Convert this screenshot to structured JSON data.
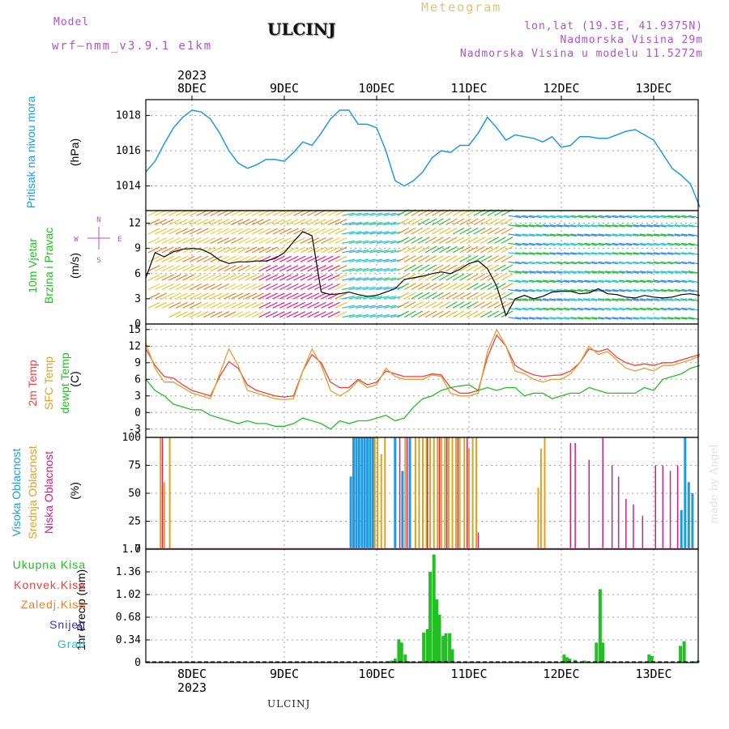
{
  "header": {
    "model_label": "Model",
    "model_name": "wrf—nmm_v3.9.1 e1km",
    "station": "ULCINJ",
    "meteogram": "Meteogram",
    "lonlat": "lon,lat (19.3E, 41.9375N)",
    "altitude": "Nadmorska Visina 29m",
    "model_altitude": "Nadmorska Visina u modelu 11.5272m",
    "footer_station": "ULCINJ",
    "watermark": "made by Angel"
  },
  "colors": {
    "pressure": "#1e9be0",
    "temp2m": "#f04040",
    "sfc": "#dfa030",
    "dewpt": "#22c022",
    "high_cloud": "#1e9be0",
    "mid_cloud": "#e0a020",
    "low_cloud": "#d02080",
    "precip": "#22c022",
    "header_purple": "#b050d0",
    "header_orange": "#e8c070"
  },
  "axis": {
    "top_year": "2023",
    "bottom_year": "2023",
    "days": [
      "8DEC",
      "9DEC",
      "10DEC",
      "11DEC",
      "12DEC",
      "13DEC"
    ]
  },
  "chart_data": [
    {
      "id": "pressure",
      "type": "line",
      "ylabel_main": "Pritisak na nivou mora",
      "ylabel_unit": "(hPa)",
      "yticks": [
        1014,
        1016,
        1018
      ],
      "ylim": [
        1012.6,
        1018.9
      ],
      "x_days": [
        -0.5,
        -0.4,
        -0.3,
        -0.2,
        -0.1,
        0.0,
        0.1,
        0.2,
        0.3,
        0.4,
        0.5,
        0.6,
        0.7,
        0.8,
        0.9,
        1.0,
        1.1,
        1.2,
        1.3,
        1.4,
        1.5,
        1.6,
        1.7,
        1.8,
        1.9,
        2.0,
        2.1,
        2.2,
        2.3,
        2.4,
        2.5,
        2.6,
        2.7,
        2.8,
        2.9,
        3.0,
        3.1,
        3.2,
        3.3,
        3.4,
        3.5,
        3.6,
        3.7,
        3.8,
        3.9,
        4.0,
        4.1,
        4.2,
        4.3,
        4.4,
        4.5,
        4.6,
        4.7,
        4.8,
        4.9,
        5.0,
        5.1,
        5.2,
        5.3,
        5.4,
        5.5
      ],
      "series": [
        {
          "values": [
            1014.8,
            1015.4,
            1016.4,
            1017.3,
            1017.9,
            1018.3,
            1018.2,
            1017.8,
            1017.0,
            1016.0,
            1015.3,
            1015.0,
            1015.2,
            1015.5,
            1015.5,
            1015.4,
            1015.9,
            1016.5,
            1016.3,
            1017.0,
            1017.8,
            1018.3,
            1018.3,
            1017.5,
            1017.5,
            1017.3,
            1016.0,
            1014.3,
            1014.0,
            1014.3,
            1014.8,
            1015.6,
            1016.0,
            1015.9,
            1016.3,
            1016.3,
            1017.0,
            1017.9,
            1017.3,
            1016.6,
            1016.9,
            1016.8,
            1016.7,
            1016.5,
            1016.8,
            1016.2,
            1016.3,
            1016.8,
            1016.8,
            1016.7,
            1016.7,
            1016.9,
            1017.1,
            1017.2,
            1016.9,
            1016.6,
            1015.8,
            1015.0,
            1014.6,
            1014.1,
            1012.8
          ]
        }
      ]
    },
    {
      "id": "wind",
      "type": "line",
      "ylabel_main": "10m Vjetar",
      "ylabel_sub": "Brzina i Pravac",
      "ylabel_unit": "(m/s)",
      "compass": [
        "N",
        "E",
        "S",
        "W"
      ],
      "yticks": [
        0,
        3,
        6,
        9,
        12
      ],
      "ylim": [
        0,
        13.5
      ],
      "x_days": [
        -0.5,
        -0.4,
        -0.3,
        -0.2,
        -0.1,
        0.0,
        0.1,
        0.2,
        0.3,
        0.4,
        0.5,
        0.6,
        0.7,
        0.8,
        0.9,
        1.0,
        1.1,
        1.2,
        1.3,
        1.4,
        1.5,
        1.6,
        1.7,
        1.8,
        1.9,
        2.0,
        2.1,
        2.2,
        2.3,
        2.4,
        2.5,
        2.6,
        2.7,
        2.8,
        2.9,
        3.0,
        3.1,
        3.2,
        3.3,
        3.4,
        3.5,
        3.6,
        3.7,
        3.8,
        3.9,
        4.0,
        4.1,
        4.2,
        4.3,
        4.4,
        4.5,
        4.6,
        4.7,
        4.8,
        4.9,
        5.0,
        5.1,
        5.2,
        5.3,
        5.4,
        5.5
      ],
      "series": [
        {
          "values": [
            5.5,
            8.5,
            8.0,
            8.6,
            8.9,
            9.0,
            8.9,
            8.4,
            7.6,
            7.2,
            7.4,
            7.4,
            7.5,
            7.5,
            7.8,
            8.5,
            9.8,
            11.0,
            10.5,
            3.8,
            3.5,
            3.6,
            3.8,
            3.5,
            3.3,
            3.4,
            3.8,
            4.2,
            5.3,
            5.5,
            5.7,
            6.0,
            6.2,
            6.0,
            6.5,
            7.2,
            7.5,
            6.6,
            4.5,
            1.0,
            3.0,
            3.4,
            3.0,
            3.3,
            3.8,
            3.9,
            3.9,
            3.6,
            3.7,
            4.2,
            3.6,
            3.5,
            3.2,
            3.1,
            3.4,
            3.2,
            3.1,
            3.2,
            3.5,
            3.6,
            3.4
          ]
        }
      ]
    },
    {
      "id": "temperature",
      "type": "line",
      "ylabel_main": "2m Temp",
      "ylabel_sub": "SFC Temp",
      "ylabel_sub2": "dewpt Temp",
      "ylabel_unit": "(C)",
      "yticks": [
        -3,
        0,
        3,
        6,
        9,
        12,
        15
      ],
      "ylim": [
        -4.5,
        16
      ],
      "x_days": [
        -0.5,
        -0.4,
        -0.3,
        -0.2,
        -0.1,
        0.0,
        0.1,
        0.2,
        0.3,
        0.4,
        0.5,
        0.6,
        0.7,
        0.8,
        0.9,
        1.0,
        1.1,
        1.2,
        1.3,
        1.4,
        1.5,
        1.6,
        1.7,
        1.8,
        1.9,
        2.0,
        2.1,
        2.2,
        2.3,
        2.4,
        2.5,
        2.6,
        2.7,
        2.8,
        2.9,
        3.0,
        3.1,
        3.2,
        3.3,
        3.4,
        3.5,
        3.6,
        3.7,
        3.8,
        3.9,
        4.0,
        4.1,
        4.2,
        4.3,
        4.4,
        4.5,
        4.6,
        4.7,
        4.8,
        4.9,
        5.0,
        5.1,
        5.2,
        5.3,
        5.4,
        5.5
      ],
      "series": [
        {
          "name": "2m Temp",
          "values": [
            11.5,
            8.5,
            6.5,
            6.2,
            5.0,
            4.0,
            3.5,
            3.0,
            6.5,
            9.2,
            8.0,
            5.0,
            4.0,
            3.5,
            3.0,
            2.8,
            3.0,
            7.5,
            10.5,
            9.0,
            5.5,
            4.5,
            4.5,
            6.0,
            5.0,
            5.5,
            7.5,
            7.0,
            6.5,
            6.5,
            6.5,
            7.0,
            6.8,
            4.5,
            3.5,
            3.5,
            4.0,
            10.0,
            14.0,
            12.0,
            8.5,
            7.5,
            6.8,
            6.5,
            6.7,
            6.8,
            7.5,
            9.0,
            11.5,
            11.0,
            11.5,
            10.0,
            9.0,
            8.5,
            8.8,
            8.5,
            9.0,
            9.0,
            9.5,
            10.0,
            10.5
          ]
        },
        {
          "name": "SFC Temp",
          "values": [
            12.5,
            8.0,
            5.5,
            5.5,
            4.5,
            3.5,
            3.0,
            2.5,
            7.0,
            11.5,
            8.5,
            4.0,
            3.5,
            3.0,
            2.5,
            2.3,
            2.5,
            7.5,
            11.5,
            8.5,
            4.0,
            3.0,
            4.0,
            5.8,
            4.5,
            5.0,
            8.0,
            6.5,
            6.0,
            6.0,
            6.0,
            6.8,
            6.5,
            3.5,
            3.0,
            3.0,
            3.5,
            11.0,
            15.0,
            12.0,
            7.5,
            7.0,
            6.0,
            5.5,
            6.0,
            6.0,
            7.0,
            9.0,
            12.0,
            10.5,
            11.0,
            9.5,
            8.0,
            7.5,
            8.0,
            7.5,
            8.5,
            8.5,
            9.0,
            9.5,
            10.2
          ]
        },
        {
          "name": "dewpt Temp",
          "values": [
            6.0,
            4.0,
            3.0,
            1.5,
            1.0,
            0.5,
            0.5,
            -0.5,
            -1.0,
            -1.5,
            -2.0,
            -1.5,
            -2.0,
            -2.0,
            -2.5,
            -2.5,
            -2.0,
            -1.0,
            -1.5,
            -2.0,
            -3.0,
            -1.5,
            -2.0,
            -1.5,
            -1.5,
            -1.0,
            -0.5,
            -1.5,
            -1.0,
            1.0,
            2.5,
            3.0,
            4.0,
            4.5,
            4.8,
            5.0,
            4.0,
            4.5,
            4.0,
            4.5,
            4.5,
            3.0,
            3.5,
            3.5,
            2.5,
            3.0,
            3.5,
            3.5,
            4.5,
            4.0,
            3.5,
            3.5,
            3.5,
            3.5,
            4.5,
            4.0,
            6.0,
            6.5,
            7.0,
            8.0,
            8.5
          ]
        }
      ]
    },
    {
      "id": "clouds",
      "type": "bar",
      "ylabel_main": "Visoka Oblacnost",
      "ylabel_sub": "Srednja Oblacnost",
      "ylabel_sub2": "Niska Oblacnost",
      "ylabel_unit": "(%)",
      "yticks": [
        0,
        25,
        50,
        75,
        100
      ],
      "ylim": [
        0,
        100
      ],
      "series": [
        {
          "name": "Visoka Oblacnost",
          "x_days": [
            1.72,
            1.75,
            1.78,
            1.81,
            1.84,
            1.87,
            1.9,
            1.93,
            1.96,
            2.2,
            2.28,
            2.36,
            5.3,
            5.34,
            5.38,
            5.42
          ],
          "values": [
            65,
            100,
            100,
            100,
            100,
            100,
            100,
            100,
            100,
            100,
            70,
            100,
            35,
            100,
            60,
            50
          ]
        },
        {
          "name": "Srednja Oblacnost",
          "x_days": [
            -0.34,
            -0.3,
            -0.24,
            1.98,
            2.01,
            2.05,
            2.09,
            2.31,
            2.42,
            2.46,
            2.5,
            2.54,
            2.58,
            2.62,
            2.66,
            2.7,
            2.74,
            2.78,
            2.82,
            2.86,
            2.9,
            2.95,
            3.0,
            3.04,
            3.08,
            3.75,
            3.78,
            3.82
          ],
          "values": [
            100,
            60,
            100,
            100,
            100,
            85,
            100,
            100,
            100,
            100,
            100,
            100,
            100,
            100,
            100,
            100,
            100,
            100,
            100,
            100,
            100,
            100,
            90,
            100,
            100,
            55,
            90,
            100
          ]
        },
        {
          "name": "Niska Oblacnost",
          "x_days": [
            -0.32,
            2.25,
            2.33,
            2.55,
            2.68,
            2.76,
            2.88,
            2.98,
            3.1,
            4.1,
            4.15,
            4.3,
            4.45,
            4.55,
            4.62,
            4.7,
            4.78,
            4.88,
            5.02,
            5.1,
            5.18,
            5.26
          ],
          "values": [
            100,
            100,
            100,
            100,
            100,
            100,
            100,
            100,
            15,
            95,
            95,
            80,
            100,
            75,
            65,
            45,
            40,
            30,
            75,
            75,
            70,
            75
          ]
        }
      ]
    },
    {
      "id": "precip",
      "type": "bar",
      "ylabel_unit": "1hr Precip (mm)",
      "legend": [
        "Ukupna Kisa",
        "Konvek.Kisa",
        "Zaledj.Kisa",
        "Snijeg",
        "Grad"
      ],
      "legend_colors": [
        "#22c022",
        "#f04040",
        "#f08030",
        "#3030e0",
        "#20c0c0"
      ],
      "yticks": [
        0,
        0.34,
        0.68,
        1.02,
        1.36,
        1.7
      ],
      "ylim": [
        0,
        1.7
      ],
      "x_days": [
        2.12,
        2.16,
        2.2,
        2.24,
        2.27,
        2.31,
        2.35,
        2.51,
        2.55,
        2.58,
        2.62,
        2.65,
        2.68,
        2.72,
        2.75,
        2.79,
        2.82,
        4.03,
        4.06,
        4.09,
        4.15,
        4.25,
        4.38,
        4.42,
        4.45,
        4.95,
        4.98,
        5.29,
        5.33,
        5.44,
        5.48
      ],
      "values": [
        0.02,
        0.03,
        0.06,
        0.35,
        0.3,
        0.12,
        0.02,
        0.45,
        0.5,
        1.36,
        1.62,
        0.95,
        0.72,
        0.4,
        0.44,
        0.44,
        0.2,
        0.12,
        0.08,
        0.06,
        0.04,
        0.03,
        0.3,
        1.1,
        0.3,
        0.12,
        0.1,
        0.25,
        0.32,
        0.02,
        0.03
      ]
    }
  ]
}
